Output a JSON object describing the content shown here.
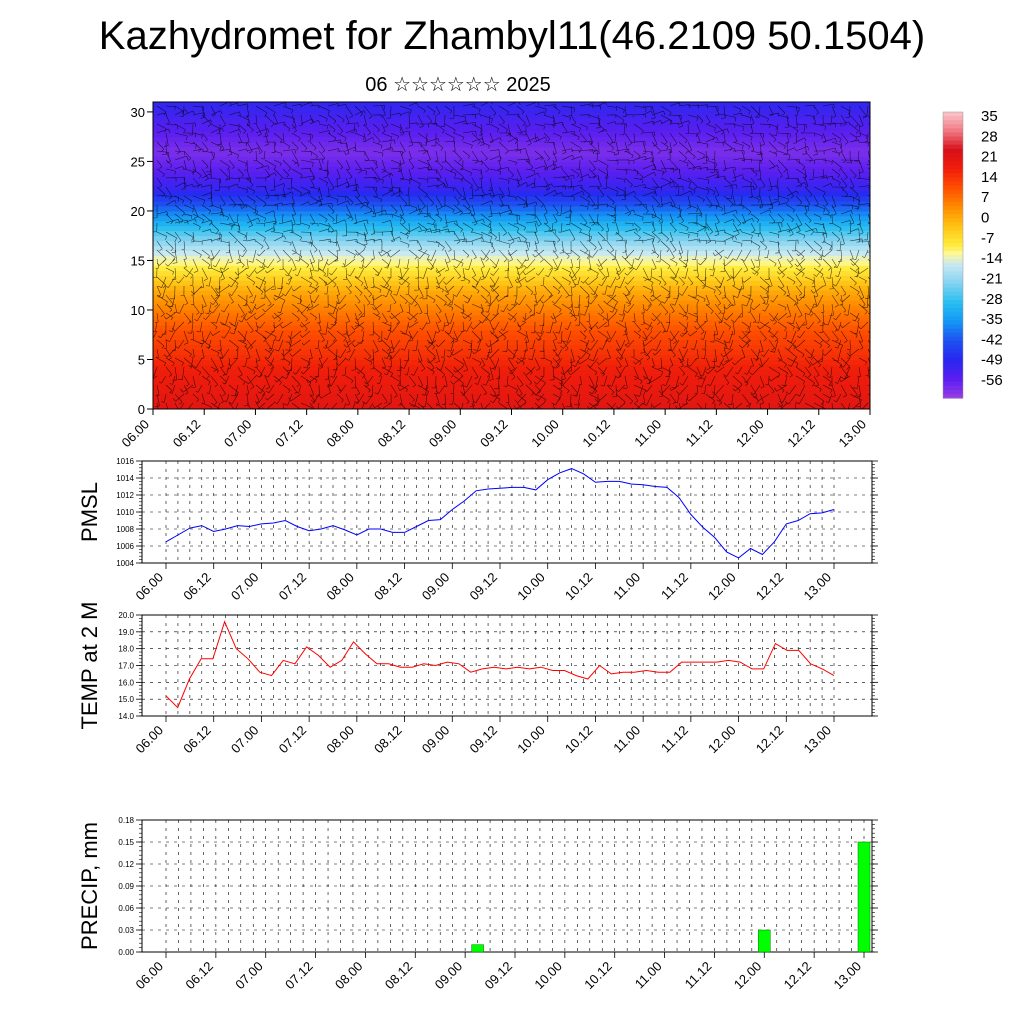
{
  "header": {
    "title": "Kazhydromet for Zhambyl11(46.2109 50.1504)",
    "subtitle": "06 ☆☆☆☆☆☆ 2025"
  },
  "chart_data": [
    {
      "type": "heatmap",
      "title": "Kazhydromet for Zhambyl11(46.2109 50.1504)",
      "subtitle": "06 ☆☆☆☆☆☆ 2025",
      "x_ticks": [
        "06.00",
        "06.12",
        "07.00",
        "07.12",
        "08.00",
        "08.12",
        "09.00",
        "09.12",
        "10.00",
        "10.12",
        "11.00",
        "11.12",
        "12.00",
        "12.12",
        "13.00"
      ],
      "y_ticks": [
        0,
        5,
        10,
        15,
        20,
        25,
        30
      ],
      "ylim": [
        0,
        31
      ],
      "colorbar": {
        "labels": [
          "35",
          "28",
          "21",
          "14",
          "7",
          "0",
          "-7",
          "-14",
          "-21",
          "-28",
          "-35",
          "-42",
          "-49",
          "-56"
        ],
        "range": [
          -63,
          42
        ]
      },
      "temperature_by_height": {
        "heights": [
          0,
          4,
          8,
          12,
          14,
          16,
          18,
          20,
          22,
          24,
          26,
          28,
          31
        ],
        "values": [
          25,
          21,
          14,
          3,
          -6,
          -15,
          -26,
          -38,
          -50,
          -56,
          -60,
          -56,
          -50
        ]
      },
      "wind_barbs": true
    },
    {
      "type": "line",
      "ylabel": "PMSL",
      "x_ticks": [
        "06.00",
        "06.12",
        "07.00",
        "07.12",
        "08.00",
        "08.12",
        "09.00",
        "09.12",
        "10.00",
        "10.12",
        "11.00",
        "11.12",
        "12.00",
        "12.12",
        "13.00"
      ],
      "y_ticks": [
        "1004",
        "1006",
        "1008",
        "1010",
        "1012",
        "1014",
        "1016"
      ],
      "ylim": [
        1004,
        1016
      ],
      "color": "#0000ff",
      "values": [
        1006.5,
        1007.3,
        1008.1,
        1008.4,
        1007.7,
        1008.0,
        1008.4,
        1008.3,
        1008.6,
        1008.7,
        1009.0,
        1008.3,
        1007.8,
        1008.0,
        1008.4,
        1007.9,
        1007.3,
        1008.0,
        1008.0,
        1007.6,
        1007.6,
        1008.3,
        1009.0,
        1009.1,
        1010.3,
        1011.3,
        1012.5,
        1012.7,
        1012.8,
        1012.9,
        1012.9,
        1012.6,
        1013.8,
        1014.6,
        1015.1,
        1014.5,
        1013.5,
        1013.6,
        1013.6,
        1013.3,
        1013.2,
        1013.0,
        1012.9,
        1011.7,
        1009.7,
        1008.2,
        1007.0,
        1005.3,
        1004.6,
        1005.7,
        1005.0,
        1006.5,
        1008.6,
        1009.0,
        1009.8,
        1009.9,
        1010.3
      ]
    },
    {
      "type": "line",
      "ylabel": "TEMP at 2 M",
      "x_ticks": [
        "06.00",
        "06.12",
        "07.00",
        "07.12",
        "08.00",
        "08.12",
        "09.00",
        "09.12",
        "10.00",
        "10.12",
        "11.00",
        "11.12",
        "12.00",
        "12.12",
        "13.00"
      ],
      "y_ticks": [
        "14.0",
        "15.0",
        "16.0",
        "17.0",
        "18.0",
        "19.0",
        "20.0"
      ],
      "ylim": [
        14,
        20
      ],
      "color": "#ff0000",
      "values": [
        15.2,
        14.5,
        16.2,
        17.4,
        17.4,
        19.6,
        18.0,
        17.4,
        16.6,
        16.4,
        17.3,
        17.1,
        18.1,
        17.6,
        16.9,
        17.3,
        18.4,
        17.7,
        17.1,
        17.1,
        16.9,
        16.9,
        17.1,
        17.0,
        17.2,
        17.1,
        16.6,
        16.8,
        16.9,
        16.8,
        16.9,
        16.8,
        16.9,
        16.7,
        16.7,
        16.4,
        16.2,
        17.0,
        16.5,
        16.6,
        16.6,
        16.7,
        16.6,
        16.6,
        17.2,
        17.2,
        17.2,
        17.2,
        17.3,
        17.2,
        16.8,
        16.8,
        18.3,
        17.9,
        17.9,
        17.1,
        16.8,
        16.4
      ]
    },
    {
      "type": "bar",
      "ylabel": "PRECIP, mm",
      "x_ticks": [
        "06.00",
        "06.12",
        "07.00",
        "07.12",
        "08.00",
        "08.12",
        "09.00",
        "09.12",
        "10.00",
        "10.12",
        "11.00",
        "11.12",
        "12.00",
        "12.12",
        "13.00"
      ],
      "y_ticks": [
        "0.00",
        "0.03",
        "0.06",
        "0.09",
        "0.12",
        "0.15",
        "0.18"
      ],
      "ylim": [
        0,
        0.18
      ],
      "color": "#00ff00",
      "bars": [
        {
          "x": "09.03",
          "value": 0.01
        },
        {
          "x": "12.00",
          "value": 0.03
        },
        {
          "x": "13.00",
          "value": 0.15
        }
      ]
    }
  ]
}
